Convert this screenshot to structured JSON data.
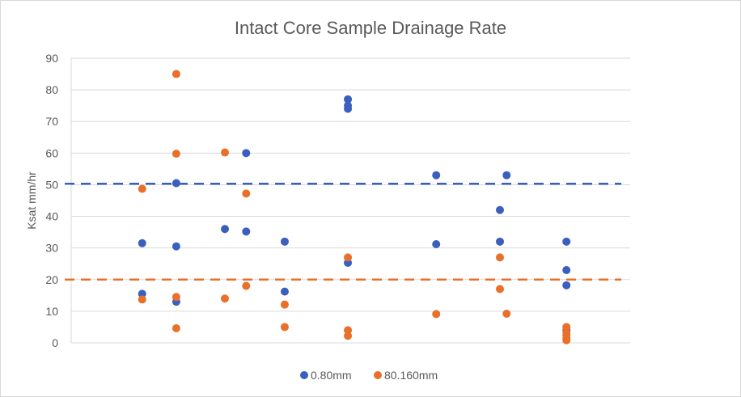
{
  "chart_data": {
    "type": "scatter",
    "title": "Intact Core Sample Drainage Rate",
    "xlabel": "",
    "ylabel": "Ksat mm/hr",
    "ylim": [
      0,
      90
    ],
    "yticks": [
      0,
      10,
      20,
      30,
      40,
      50,
      60,
      70,
      80,
      90
    ],
    "xlim": [
      0,
      100
    ],
    "x_axis_labels_shown": false,
    "grid": "horizontal",
    "legend_position": "bottom",
    "series": [
      {
        "name": "0.80mm",
        "color": "#3a5fbf",
        "points": [
          {
            "x": 12.7,
            "y": 31.5
          },
          {
            "x": 12.7,
            "y": 15.5
          },
          {
            "x": 18.8,
            "y": 50.5
          },
          {
            "x": 18.8,
            "y": 30.5
          },
          {
            "x": 18.8,
            "y": 13
          },
          {
            "x": 27.5,
            "y": 36
          },
          {
            "x": 31.3,
            "y": 60
          },
          {
            "x": 31.3,
            "y": 35.2
          },
          {
            "x": 38.2,
            "y": 32
          },
          {
            "x": 38.2,
            "y": 16.2
          },
          {
            "x": 49.5,
            "y": 77
          },
          {
            "x": 49.5,
            "y": 75
          },
          {
            "x": 49.5,
            "y": 74
          },
          {
            "x": 49.5,
            "y": 25.3
          },
          {
            "x": 65.3,
            "y": 53
          },
          {
            "x": 65.3,
            "y": 31.2
          },
          {
            "x": 76.7,
            "y": 42
          },
          {
            "x": 76.7,
            "y": 32
          },
          {
            "x": 77.9,
            "y": 53
          },
          {
            "x": 88.6,
            "y": 32
          },
          {
            "x": 88.6,
            "y": 23
          },
          {
            "x": 88.6,
            "y": 18.2
          },
          {
            "x": 88.6,
            "y": 4
          }
        ]
      },
      {
        "name": "80.160mm",
        "color": "#e8702a",
        "points": [
          {
            "x": 12.7,
            "y": 48.7
          },
          {
            "x": 12.7,
            "y": 13.7
          },
          {
            "x": 18.8,
            "y": 85
          },
          {
            "x": 18.8,
            "y": 59.8
          },
          {
            "x": 18.8,
            "y": 14.5
          },
          {
            "x": 18.8,
            "y": 4.6
          },
          {
            "x": 27.5,
            "y": 60.2
          },
          {
            "x": 27.5,
            "y": 14
          },
          {
            "x": 31.3,
            "y": 47.2
          },
          {
            "x": 31.3,
            "y": 18
          },
          {
            "x": 38.2,
            "y": 12.1
          },
          {
            "x": 38.2,
            "y": 5
          },
          {
            "x": 49.5,
            "y": 27
          },
          {
            "x": 49.5,
            "y": 4
          },
          {
            "x": 49.5,
            "y": 2.2
          },
          {
            "x": 65.3,
            "y": 9.1
          },
          {
            "x": 76.7,
            "y": 27
          },
          {
            "x": 76.7,
            "y": 17
          },
          {
            "x": 77.9,
            "y": 9.2
          },
          {
            "x": 88.6,
            "y": 5
          },
          {
            "x": 88.6,
            "y": 3.3
          },
          {
            "x": 88.6,
            "y": 2.5
          },
          {
            "x": 88.6,
            "y": 1.5
          },
          {
            "x": 88.6,
            "y": 0.8
          }
        ]
      }
    ],
    "reference_lines": [
      {
        "name": "0.80mm-threshold",
        "y": 50.3,
        "color": "#3a5fbf",
        "style": "dashed"
      },
      {
        "name": "80.160mm-threshold",
        "y": 20,
        "color": "#e8702a",
        "style": "dashed"
      }
    ]
  }
}
